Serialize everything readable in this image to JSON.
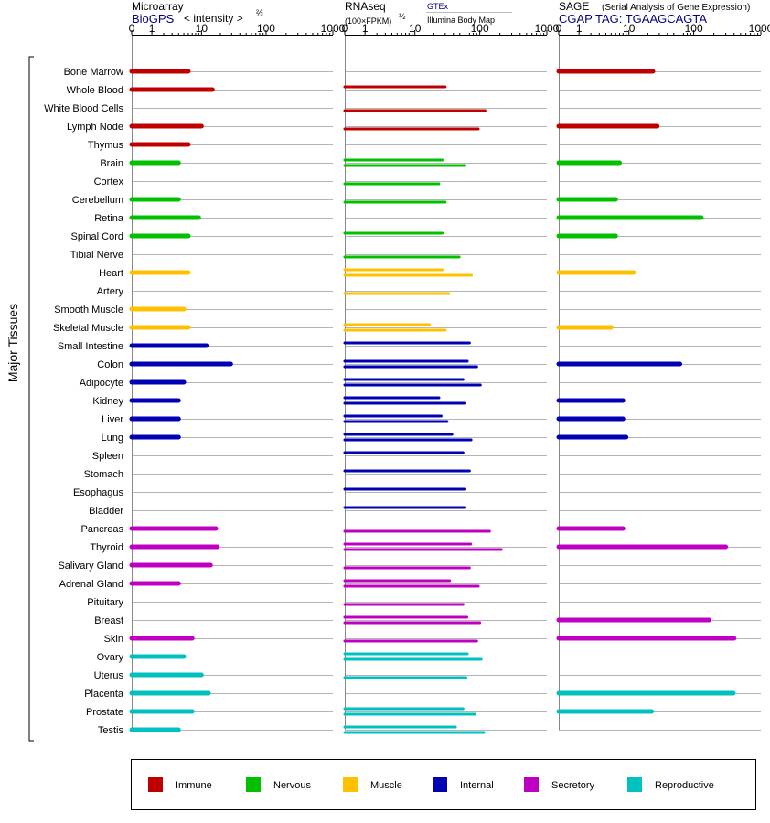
{
  "header": {
    "microarray": {
      "title": "Microarray",
      "source": "BioGPS",
      "measure": "< intensity >",
      "power": "⅔"
    },
    "rnaseq": {
      "title": "RNAseq",
      "measure": "(100×FPKM)",
      "power": "½",
      "legend_top": "GTEx",
      "legend_bottom": "Illumina Body Map"
    },
    "sage": {
      "title": "SAGE",
      "subtitle": "(Serial Analysis of Gene Expression)",
      "tag": "CGAP TAG: TGAAGCAGTA"
    }
  },
  "group_label": "Major Tissues",
  "axis_ticks": [
    "0",
    "1",
    "10",
    "100",
    "1000"
  ],
  "legend": [
    {
      "label": "Immune",
      "color": "#c00000"
    },
    {
      "label": "Nervous",
      "color": "#00c000"
    },
    {
      "label": "Muscle",
      "color": "#ffc000"
    },
    {
      "label": "Internal",
      "color": "#0000b4"
    },
    {
      "label": "Secretory",
      "color": "#c000c0"
    },
    {
      "label": "Reproductive",
      "color": "#00c0c0"
    }
  ],
  "chart_data": {
    "type": "bar",
    "categories": [
      "Bone Marrow",
      "Whole Blood",
      "White Blood Cells",
      "Lymph Node",
      "Thymus",
      "Brain",
      "Cortex",
      "Cerebellum",
      "Retina",
      "Spinal Cord",
      "Tibial Nerve",
      "Heart",
      "Artery",
      "Smooth Muscle",
      "Skeletal Muscle",
      "Small Intestine",
      "Colon",
      "Adipocyte",
      "Kidney",
      "Liver",
      "Lung",
      "Spleen",
      "Stomach",
      "Esophagus",
      "Bladder",
      "Pancreas",
      "Thyroid",
      "Salivary Gland",
      "Adrenal Gland",
      "Pituitary",
      "Breast",
      "Skin",
      "Ovary",
      "Uterus",
      "Placenta",
      "Prostate",
      "Testis"
    ],
    "groups": [
      "Immune",
      "Immune",
      "Immune",
      "Immune",
      "Immune",
      "Nervous",
      "Nervous",
      "Nervous",
      "Nervous",
      "Nervous",
      "Nervous",
      "Muscle",
      "Muscle",
      "Muscle",
      "Muscle",
      "Internal",
      "Internal",
      "Internal",
      "Internal",
      "Internal",
      "Internal",
      "Internal",
      "Internal",
      "Internal",
      "Internal",
      "Secretory",
      "Secretory",
      "Secretory",
      "Secretory",
      "Secretory",
      "Secretory",
      "Secretory",
      "Reproductive",
      "Reproductive",
      "Reproductive",
      "Reproductive",
      "Reproductive"
    ],
    "axis_scale": "log(1+x)",
    "xlim": [
      0,
      1000
    ],
    "series": [
      {
        "name": "BioGPS",
        "values": [
          6,
          15,
          null,
          10,
          6,
          4,
          null,
          4,
          9,
          6,
          null,
          6,
          null,
          5,
          6,
          12,
          29,
          5,
          4,
          4,
          4,
          null,
          null,
          null,
          null,
          17,
          18,
          14,
          4,
          null,
          null,
          7,
          5,
          10,
          13,
          7,
          4
        ]
      },
      {
        "name": "GTEx",
        "values": [
          null,
          30,
          null,
          null,
          null,
          27,
          null,
          null,
          null,
          27,
          null,
          27,
          null,
          null,
          17,
          70,
          65,
          56,
          24,
          26,
          38,
          56,
          70,
          60,
          60,
          null,
          73,
          null,
          35,
          null,
          64,
          null,
          65,
          null,
          null,
          56,
          43
        ]
      },
      {
        "name": "Illumina Body Map",
        "values": [
          null,
          null,
          120,
          95,
          null,
          60,
          24,
          30,
          null,
          null,
          49,
          75,
          34,
          null,
          30,
          null,
          90,
          102,
          60,
          32,
          74,
          null,
          null,
          null,
          null,
          140,
          210,
          70,
          95,
          56,
          100,
          90,
          105,
          62,
          null,
          84,
          115
        ]
      },
      {
        "name": "CGAP SAGE",
        "values": [
          24,
          null,
          null,
          28,
          null,
          7,
          null,
          6,
          130,
          6,
          null,
          12,
          null,
          null,
          5,
          null,
          62,
          null,
          8,
          8,
          9,
          null,
          null,
          null,
          null,
          8,
          300,
          null,
          null,
          null,
          170,
          400,
          null,
          null,
          390,
          23,
          null
        ]
      }
    ]
  }
}
